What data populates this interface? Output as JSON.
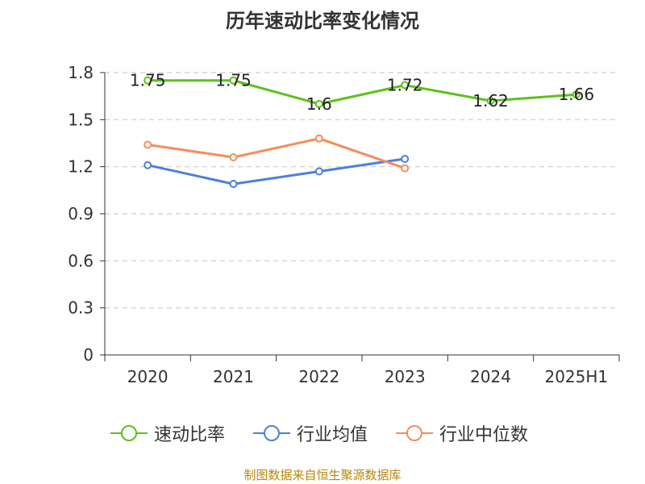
{
  "chart_data": {
    "type": "line",
    "title": "历年速动比率变化情况",
    "categories": [
      "2020",
      "2021",
      "2022",
      "2023",
      "2024",
      "2025H1"
    ],
    "ylim": [
      0,
      1.8
    ],
    "yticks": [
      "0",
      "0.3",
      "0.6",
      "0.9",
      "1.2",
      "1.5",
      "1.8"
    ],
    "grid": true,
    "legend_position": "bottom",
    "series": [
      {
        "name": "速动比率",
        "color": "#5cc21a",
        "values": [
          1.75,
          1.75,
          1.6,
          1.72,
          1.62,
          1.66
        ],
        "labels": [
          "1.75",
          "1.75",
          "1.6",
          "1.72",
          "1.62",
          "1.66"
        ]
      },
      {
        "name": "行业均值",
        "color": "#4d7fdc",
        "values": [
          1.21,
          1.09,
          1.17,
          1.25,
          null,
          null
        ]
      },
      {
        "name": "行业中位数",
        "color": "#f58d58",
        "values": [
          1.34,
          1.26,
          1.38,
          1.19,
          null,
          null
        ]
      }
    ]
  },
  "source": "制图数据来自恒生聚源数据库"
}
